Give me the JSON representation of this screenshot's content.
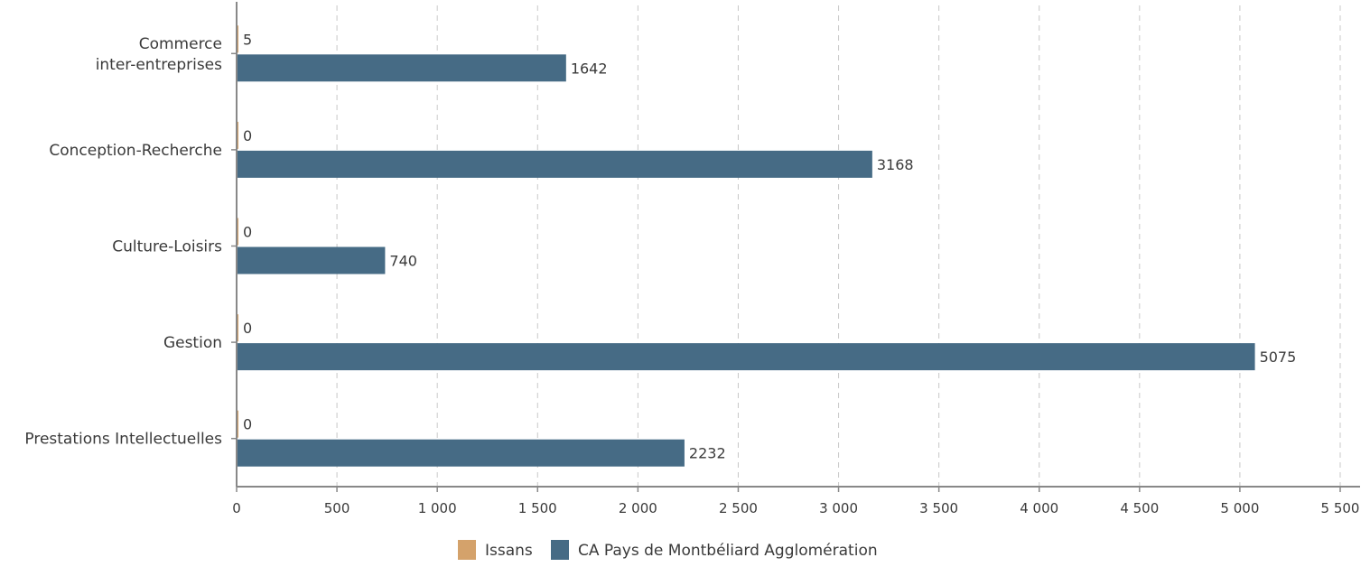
{
  "chart_data": {
    "type": "bar",
    "orientation": "horizontal",
    "categories": [
      [
        "Commerce",
        "inter-entreprises"
      ],
      [
        "Conception-Recherche"
      ],
      [
        "Culture-Loisirs"
      ],
      [
        "Gestion"
      ],
      [
        "Prestations Intellectuelles"
      ]
    ],
    "series": [
      {
        "name": "Issans",
        "color": "#d4a26b",
        "values": [
          5,
          0,
          0,
          0,
          0
        ]
      },
      {
        "name": "CA Pays de Montbéliard Agglomération",
        "color": "#466b85",
        "values": [
          1642,
          3168,
          740,
          5075,
          2232
        ]
      }
    ],
    "xlim": [
      0,
      5500
    ],
    "xticks": [
      0,
      500,
      1000,
      1500,
      2000,
      2500,
      3000,
      3500,
      4000,
      4500,
      5000,
      5500
    ],
    "xtick_labels": [
      "0",
      "500",
      "1 000",
      "1 500",
      "2 000",
      "2 500",
      "3 000",
      "3 500",
      "4 000",
      "4 500",
      "5 000",
      "5 500"
    ],
    "grid": "vertical dashed",
    "legend": "bottom-center",
    "title": "",
    "xlabel": "",
    "ylabel": ""
  }
}
